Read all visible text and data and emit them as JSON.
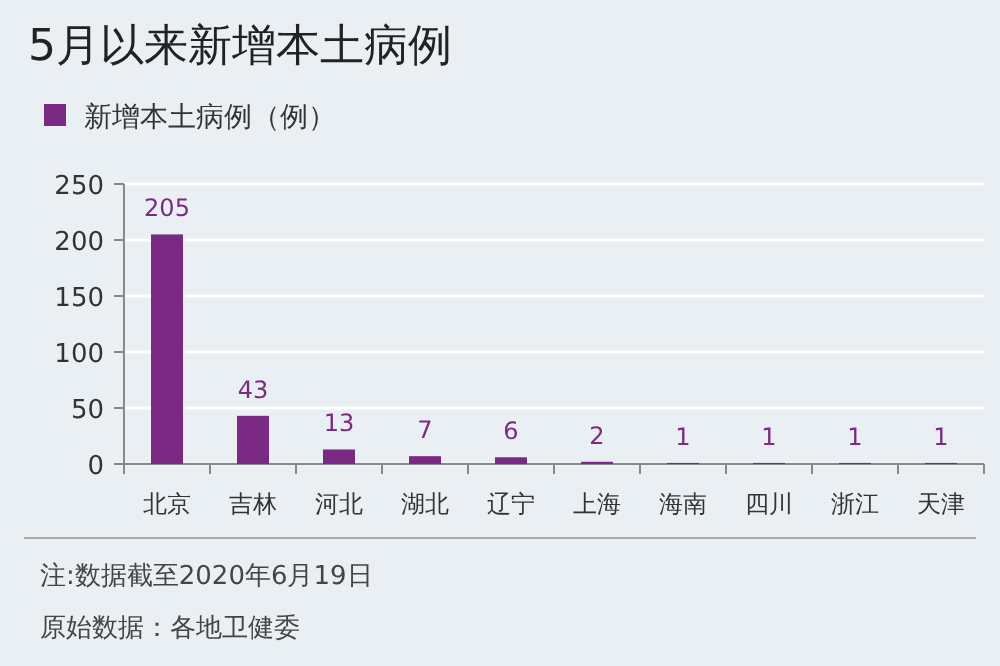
{
  "chart_data": {
    "type": "bar",
    "title": "5月以来新增本土病例",
    "categories": [
      "北京",
      "吉林",
      "河北",
      "湖北",
      "辽宁",
      "上海",
      "海南",
      "四川",
      "浙江",
      "天津"
    ],
    "series": [
      {
        "name": "新增本土病例（例）",
        "color": "#7b2a84",
        "values": [
          205,
          43,
          13,
          7,
          6,
          2,
          1,
          1,
          1,
          1
        ]
      }
    ],
    "ylim": [
      0,
      250
    ],
    "yticks": [
      0,
      50,
      100,
      150,
      200,
      250
    ],
    "grid": "y",
    "legend": "top left",
    "data_labels": true,
    "annotations": [
      "注:数据截至2020年6月19日",
      "原始数据：各地卫健委"
    ]
  }
}
